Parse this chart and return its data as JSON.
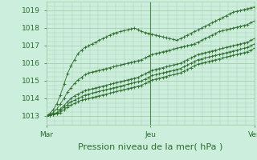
{
  "bg_color": "#cceedd",
  "grid_color": "#aaccaa",
  "line_color": "#2d6e2d",
  "marker_color": "#2d6e2d",
  "xlabel": "Pression niveau de la mer( hPa )",
  "xtick_labels": [
    "Mar",
    "Jeu",
    "Ven"
  ],
  "xtick_positions": [
    0,
    48,
    96
  ],
  "ytick_labels": [
    "1013",
    "1014",
    "1015",
    "1016",
    "1017",
    "1018",
    "1019"
  ],
  "ylim": [
    1012.5,
    1019.5
  ],
  "xlim": [
    0,
    96
  ],
  "xlabel_fontsize": 8,
  "tick_fontsize": 6.5,
  "series": [
    [
      1013.0,
      1013.15,
      1013.35,
      1013.7,
      1014.2,
      1014.8,
      1015.4,
      1015.85,
      1016.2,
      1016.55,
      1016.75,
      1016.9,
      1017.0,
      1017.1,
      1017.2,
      1017.3,
      1017.4,
      1017.5,
      1017.6,
      1017.7,
      1017.75,
      1017.8,
      1017.85,
      1017.9,
      1017.95,
      1018.0,
      1017.9,
      1017.8,
      1017.75,
      1017.7,
      1017.65,
      1017.6,
      1017.55,
      1017.5,
      1017.45,
      1017.4,
      1017.35,
      1017.3,
      1017.4,
      1017.5,
      1017.6,
      1017.7,
      1017.8,
      1017.9,
      1018.0,
      1018.1,
      1018.2,
      1018.3,
      1018.4,
      1018.5,
      1018.6,
      1018.7,
      1018.8,
      1018.9,
      1018.95,
      1019.0,
      1019.05,
      1019.1,
      1019.15,
      1019.2
    ],
    [
      1013.0,
      1013.1,
      1013.2,
      1013.4,
      1013.7,
      1014.0,
      1014.35,
      1014.6,
      1014.85,
      1015.05,
      1015.2,
      1015.35,
      1015.45,
      1015.5,
      1015.55,
      1015.6,
      1015.65,
      1015.7,
      1015.75,
      1015.8,
      1015.85,
      1015.9,
      1015.95,
      1016.0,
      1016.05,
      1016.1,
      1016.15,
      1016.2,
      1016.3,
      1016.4,
      1016.5,
      1016.55,
      1016.6,
      1016.65,
      1016.7,
      1016.75,
      1016.8,
      1016.85,
      1016.9,
      1016.95,
      1017.0,
      1017.05,
      1017.1,
      1017.2,
      1017.3,
      1017.4,
      1017.5,
      1017.6,
      1017.7,
      1017.8,
      1017.85,
      1017.9,
      1017.95,
      1018.0,
      1018.05,
      1018.1,
      1018.15,
      1018.2,
      1018.3,
      1018.4
    ],
    [
      1013.0,
      1013.05,
      1013.1,
      1013.2,
      1013.4,
      1013.6,
      1013.8,
      1014.0,
      1014.15,
      1014.25,
      1014.35,
      1014.45,
      1014.5,
      1014.55,
      1014.6,
      1014.65,
      1014.7,
      1014.75,
      1014.8,
      1014.85,
      1014.9,
      1014.95,
      1015.0,
      1015.05,
      1015.1,
      1015.15,
      1015.2,
      1015.3,
      1015.4,
      1015.5,
      1015.6,
      1015.65,
      1015.7,
      1015.75,
      1015.8,
      1015.85,
      1015.9,
      1015.95,
      1016.0,
      1016.1,
      1016.2,
      1016.3,
      1016.4,
      1016.5,
      1016.55,
      1016.6,
      1016.65,
      1016.7,
      1016.75,
      1016.8,
      1016.85,
      1016.9,
      1016.95,
      1017.0,
      1017.05,
      1017.1,
      1017.15,
      1017.2,
      1017.3,
      1017.4
    ],
    [
      1013.0,
      1013.05,
      1013.1,
      1013.15,
      1013.3,
      1013.5,
      1013.65,
      1013.8,
      1013.9,
      1014.0,
      1014.1,
      1014.2,
      1014.25,
      1014.3,
      1014.35,
      1014.4,
      1014.45,
      1014.5,
      1014.55,
      1014.6,
      1014.65,
      1014.7,
      1014.75,
      1014.8,
      1014.85,
      1014.9,
      1014.95,
      1015.0,
      1015.1,
      1015.2,
      1015.3,
      1015.35,
      1015.4,
      1015.45,
      1015.5,
      1015.55,
      1015.6,
      1015.65,
      1015.7,
      1015.8,
      1015.9,
      1016.0,
      1016.1,
      1016.2,
      1016.25,
      1016.3,
      1016.35,
      1016.4,
      1016.45,
      1016.5,
      1016.55,
      1016.6,
      1016.65,
      1016.7,
      1016.75,
      1016.8,
      1016.85,
      1016.9,
      1017.0,
      1017.1
    ],
    [
      1013.0,
      1013.05,
      1013.1,
      1013.12,
      1013.2,
      1013.35,
      1013.5,
      1013.62,
      1013.72,
      1013.82,
      1013.9,
      1013.95,
      1014.0,
      1014.05,
      1014.1,
      1014.15,
      1014.2,
      1014.25,
      1014.3,
      1014.35,
      1014.4,
      1014.45,
      1014.5,
      1014.55,
      1014.6,
      1014.65,
      1014.7,
      1014.75,
      1014.85,
      1014.95,
      1015.05,
      1015.1,
      1015.15,
      1015.2,
      1015.25,
      1015.3,
      1015.35,
      1015.4,
      1015.45,
      1015.55,
      1015.65,
      1015.75,
      1015.85,
      1015.95,
      1016.0,
      1016.05,
      1016.1,
      1016.15,
      1016.2,
      1016.25,
      1016.3,
      1016.35,
      1016.4,
      1016.45,
      1016.5,
      1016.55,
      1016.6,
      1016.65,
      1016.75,
      1016.85
    ]
  ]
}
